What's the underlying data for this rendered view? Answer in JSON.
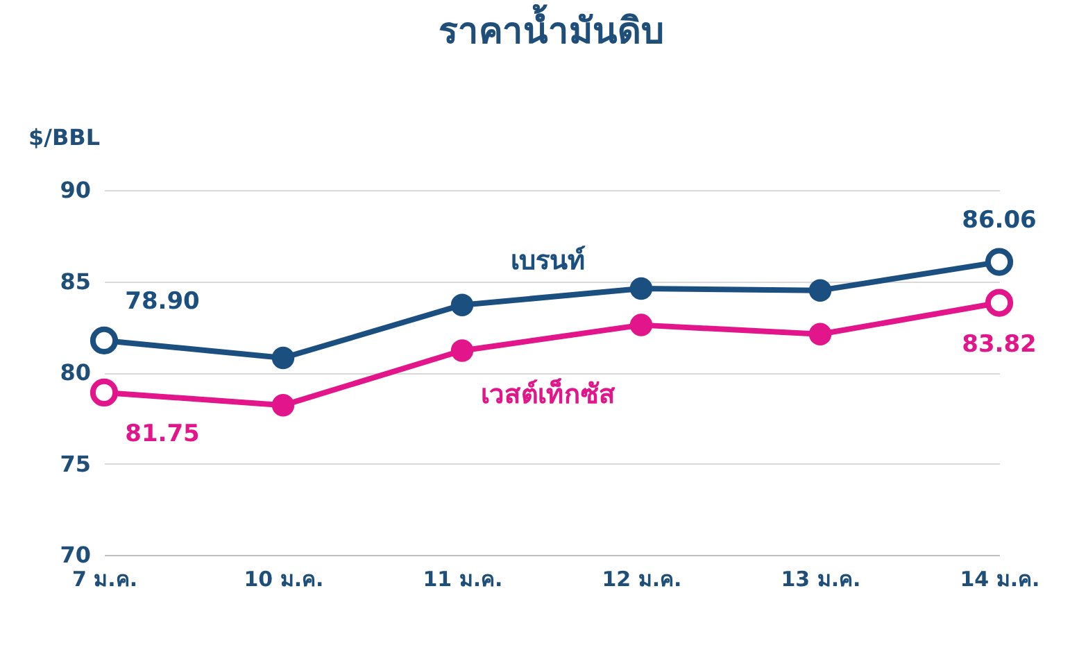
{
  "chart_data": {
    "type": "line",
    "title": "ราคาน้ำมันดิบ",
    "ylabel": "$/BBL",
    "categories": [
      "7 ม.ค.",
      "10 ม.ค.",
      "11 ม.ค.",
      "12 ม.ค.",
      "13 ม.ค.",
      "14 ม.ค."
    ],
    "ylim": [
      70,
      90
    ],
    "yticks": [
      70,
      75,
      80,
      85,
      90
    ],
    "grid": "y",
    "marker": "circle",
    "line_style": "solid",
    "annotations": [
      "78.90",
      "81.75"
    ],
    "series": [
      {
        "name": "เบรนท์",
        "color": "#1b4f80",
        "values": [
          81.75,
          80.8,
          83.7,
          84.6,
          84.5,
          86.06
        ],
        "value_labels": [
          null,
          null,
          null,
          null,
          null,
          "86.06"
        ]
      },
      {
        "name": "เวสต์เท็กซัส",
        "color": "#e2168a",
        "values": [
          78.9,
          78.2,
          81.2,
          82.6,
          82.1,
          83.82
        ],
        "value_labels": [
          null,
          null,
          null,
          null,
          null,
          "83.82"
        ]
      }
    ]
  }
}
